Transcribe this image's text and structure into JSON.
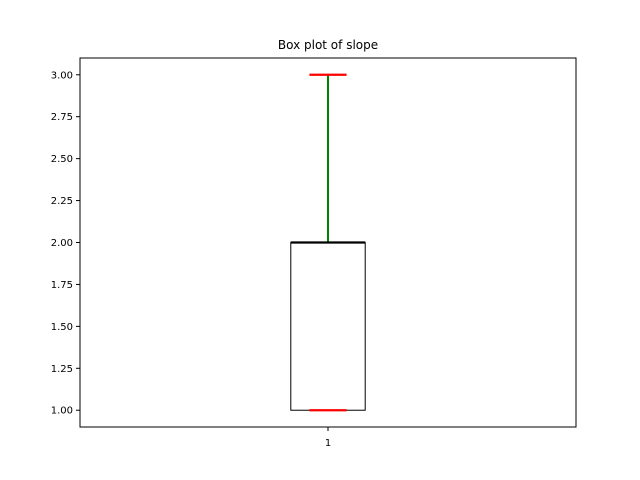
{
  "chart_data": {
    "type": "box",
    "title": "Box plot of slope",
    "xlabel": "",
    "ylabel": "",
    "categories": [
      "1"
    ],
    "boxes": [
      {
        "category": "1",
        "whisker_low": 1.0,
        "q1": 1.0,
        "median": 2.0,
        "q3": 2.0,
        "whisker_high": 3.0
      }
    ],
    "ylim": [
      0.9,
      3.1
    ],
    "yticks": [
      1.0,
      1.25,
      1.5,
      1.75,
      2.0,
      2.25,
      2.5,
      2.75,
      3.0
    ],
    "ytick_labels": [
      "1.00",
      "1.25",
      "1.50",
      "1.75",
      "2.00",
      "2.25",
      "2.50",
      "2.75",
      "3.00"
    ],
    "grid": false,
    "colors": {
      "box": "#000000",
      "median": "#000000",
      "whisker": "#008000",
      "cap": "#ff0000",
      "frame": "#000000"
    }
  }
}
